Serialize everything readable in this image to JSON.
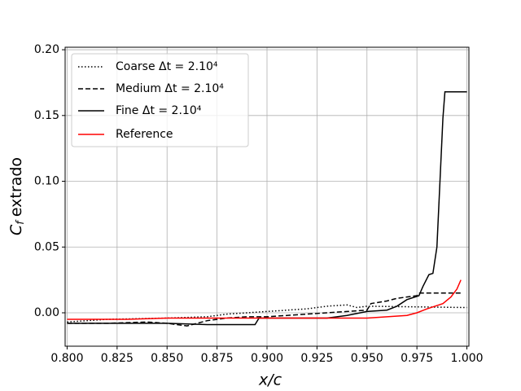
{
  "chart_data": {
    "type": "line",
    "x_label": "x/c",
    "y_label": [
      "C",
      "f",
      "extrado"
    ],
    "xlim": [
      0.799,
      1.001
    ],
    "ylim": [
      -0.0254,
      0.2019
    ],
    "xticks": [
      {
        "value": 0.8,
        "label": "0.800"
      },
      {
        "value": 0.825,
        "label": "0.825"
      },
      {
        "value": 0.85,
        "label": "0.850"
      },
      {
        "value": 0.875,
        "label": "0.875"
      },
      {
        "value": 0.9,
        "label": "0.900"
      },
      {
        "value": 0.925,
        "label": "0.925"
      },
      {
        "value": 0.95,
        "label": "0.950"
      },
      {
        "value": 0.975,
        "label": "0.975"
      },
      {
        "value": 1.0,
        "label": "1.000"
      }
    ],
    "yticks": [
      {
        "value": 0,
        "label": "0.00"
      },
      {
        "value": 0.05,
        "label": "0.05"
      },
      {
        "value": 0.1,
        "label": "0.10"
      },
      {
        "value": 0.15,
        "label": "0.15"
      },
      {
        "value": 0.2,
        "label": "0.20"
      }
    ],
    "grid": true,
    "legend": "upper left",
    "series": [
      {
        "name": "Coarse Δt = 2.10⁴",
        "color": "#000000",
        "style": "dotted",
        "x": [
          0.8,
          0.82,
          0.85,
          0.87,
          0.88,
          0.89,
          0.9,
          0.91,
          0.92,
          0.93,
          0.94,
          0.945,
          0.95,
          1.0
        ],
        "values": [
          -0.007,
          -0.005,
          -0.004,
          -0.003,
          -0.001,
          0.0,
          0.001,
          0.002,
          0.003,
          0.005,
          0.006,
          0.004,
          0.005,
          0.004
        ]
      },
      {
        "name": "Medium Δt = 2.10⁴",
        "color": "#000000",
        "style": "dashed",
        "x": [
          0.8,
          0.82,
          0.84,
          0.85,
          0.86,
          0.865,
          0.87,
          0.88,
          0.89,
          0.9,
          0.91,
          0.92,
          0.93,
          0.94,
          0.95,
          0.952,
          0.96,
          0.965,
          0.975,
          0.976,
          0.998
        ],
        "values": [
          -0.008,
          -0.008,
          -0.007,
          -0.008,
          -0.01,
          -0.008,
          -0.006,
          -0.004,
          -0.003,
          -0.003,
          -0.002,
          -0.001,
          0.0,
          0.001,
          0.002,
          0.007,
          0.009,
          0.011,
          0.013,
          0.015,
          0.015
        ]
      },
      {
        "name": "Fine Δt = 2.10⁴",
        "color": "#000000",
        "style": "solid",
        "x": [
          0.8,
          0.85,
          0.87,
          0.894,
          0.896,
          0.93,
          0.94,
          0.95,
          0.96,
          0.965,
          0.97,
          0.976,
          0.978,
          0.981,
          0.983,
          0.985,
          0.988,
          0.989,
          1.0
        ],
        "values": [
          -0.008,
          -0.008,
          -0.009,
          -0.009,
          -0.004,
          -0.004,
          -0.002,
          0.001,
          0.002,
          0.005,
          0.01,
          0.013,
          0.02,
          0.029,
          0.03,
          0.05,
          0.148,
          0.168,
          0.168
        ]
      },
      {
        "name": "Reference",
        "color": "#ff0000",
        "style": "solid",
        "x": [
          0.8,
          0.83,
          0.85,
          0.9,
          0.95,
          0.96,
          0.97,
          0.975,
          0.98,
          0.988,
          0.992,
          0.995,
          0.997
        ],
        "values": [
          -0.005,
          -0.005,
          -0.004,
          -0.004,
          -0.004,
          -0.003,
          -0.002,
          0.0,
          0.003,
          0.007,
          0.012,
          0.018,
          0.025
        ]
      }
    ]
  }
}
